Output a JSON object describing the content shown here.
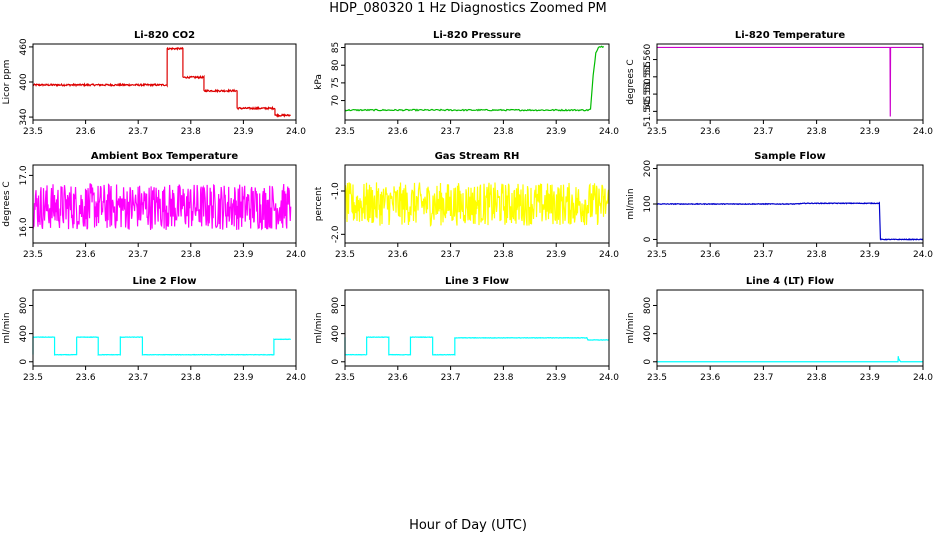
{
  "figure": {
    "title": "HDP_080320  1 Hz Diagnostics Zoomed PM",
    "xlabel": "Hour of Day (UTC)"
  },
  "chart_data": [
    {
      "type": "line",
      "title": "Li-820 CO2",
      "xlabel": "",
      "ylabel": "Licor ppm",
      "xlim": [
        23.5,
        24.0
      ],
      "ylim": [
        335,
        465
      ],
      "xticks": [
        23.5,
        23.6,
        23.7,
        23.8,
        23.9,
        24.0
      ],
      "xtick_labels": [
        "23.5",
        "23.6",
        "23.7",
        "23.8",
        "23.9",
        "24.0"
      ],
      "yticks": [
        340,
        400,
        460
      ],
      "ytick_labels": [
        "340",
        "400",
        "460"
      ],
      "color": "#dd0000",
      "series": [
        {
          "name": "CO2",
          "x": [
            23.5,
            23.755,
            23.755,
            23.7551,
            23.785,
            23.785,
            23.7851,
            23.825,
            23.825,
            23.8251,
            23.888,
            23.888,
            23.8881,
            23.96,
            23.96,
            23.9601,
            23.99
          ],
          "y": [
            395,
            395,
            395,
            457,
            457,
            408,
            408,
            408,
            385,
            385,
            385,
            355,
            355,
            355,
            343,
            343,
            343
          ]
        }
      ],
      "noise": 1.5
    },
    {
      "type": "line",
      "title": "Li-820 Pressure",
      "xlabel": "",
      "ylabel": "kPa",
      "xlim": [
        23.5,
        24.0
      ],
      "ylim": [
        64.5,
        86
      ],
      "xticks": [
        23.5,
        23.6,
        23.7,
        23.8,
        23.9,
        24.0
      ],
      "xtick_labels": [
        "23.5",
        "23.6",
        "23.7",
        "23.8",
        "23.9",
        "24.0"
      ],
      "yticks": [
        70,
        75,
        80,
        85
      ],
      "ytick_labels": [
        "70",
        "75",
        "80",
        "85"
      ],
      "color": "#00bb00",
      "series": [
        {
          "name": "Pressure",
          "x": [
            23.5,
            23.96,
            23.965,
            23.97,
            23.975,
            23.98,
            23.99
          ],
          "y": [
            67.3,
            67.3,
            67.5,
            77.0,
            83.5,
            85.2,
            85.3
          ]
        }
      ],
      "noise": 0.2
    },
    {
      "type": "line",
      "title": "Li-820 Temperature",
      "xlabel": "",
      "ylabel": "degrees C",
      "xlim": [
        23.5,
        24.0
      ],
      "ylim": [
        51.5425,
        51.5645
      ],
      "xticks": [
        23.5,
        23.6,
        23.7,
        23.8,
        23.9,
        24.0
      ],
      "xtick_labels": [
        "23.5",
        "23.6",
        "23.7",
        "23.8",
        "23.9",
        "24.0"
      ],
      "yticks": [
        51.545,
        51.55,
        51.555,
        51.56
      ],
      "ytick_labels": [
        "51.545",
        "51.550",
        "51.555",
        "51.560"
      ],
      "color": "#cc00cc",
      "series": [
        {
          "name": "Temperature",
          "x": [
            23.5,
            23.938,
            23.9385,
            23.939,
            24.0
          ],
          "y": [
            51.5635,
            51.5635,
            51.5435,
            51.5635,
            51.5635
          ]
        }
      ],
      "noise": 0
    },
    {
      "type": "line",
      "title": "Ambient Box Temperature",
      "xlabel": "",
      "ylabel": "degrees C",
      "xlim": [
        23.5,
        24.0
      ],
      "ylim": [
        15.7,
        17.2
      ],
      "xticks": [
        23.5,
        23.6,
        23.7,
        23.8,
        23.9,
        24.0
      ],
      "xtick_labels": [
        "23.5",
        "23.6",
        "23.7",
        "23.8",
        "23.9",
        "24.0"
      ],
      "yticks": [
        16.0,
        17.0
      ],
      "ytick_labels": [
        "16.0",
        "17.0"
      ],
      "color": "#ff00ff",
      "series": [
        {
          "name": "Ambient Box Temperature",
          "x": [
            23.5,
            23.99
          ],
          "y": [
            16.4,
            16.4
          ]
        }
      ],
      "noise": 0.45
    },
    {
      "type": "line",
      "title": "Gas Stream RH",
      "xlabel": "",
      "ylabel": "percent",
      "xlim": [
        23.5,
        24.0
      ],
      "ylim": [
        -2.2,
        -0.4
      ],
      "xticks": [
        23.5,
        23.6,
        23.7,
        23.8,
        23.9,
        24.0
      ],
      "xtick_labels": [
        "23.5",
        "23.6",
        "23.7",
        "23.8",
        "23.9",
        "24.0"
      ],
      "yticks": [
        -2.0,
        -1.0
      ],
      "ytick_labels": [
        "-2.0",
        "-1.0"
      ],
      "color": "#ffff00",
      "series": [
        {
          "name": "Gas Stream RH",
          "x": [
            23.5,
            24.0
          ],
          "y": [
            -1.3,
            -1.3
          ]
        }
      ],
      "noise": 0.5
    },
    {
      "type": "line",
      "title": "Sample Flow",
      "xlabel": "",
      "ylabel": "ml/min",
      "xlim": [
        23.5,
        24.0
      ],
      "ylim": [
        -10,
        210
      ],
      "xticks": [
        23.5,
        23.6,
        23.7,
        23.8,
        23.9,
        24.0
      ],
      "xtick_labels": [
        "23.5",
        "23.6",
        "23.7",
        "23.8",
        "23.9",
        "24.0"
      ],
      "yticks": [
        0,
        100,
        200
      ],
      "ytick_labels": [
        "0",
        "100",
        "200"
      ],
      "color": "#0000cc",
      "series": [
        {
          "name": "Sample Flow",
          "x": [
            23.5,
            23.76,
            23.78,
            23.918,
            23.92,
            24.0
          ],
          "y": [
            100,
            100,
            102,
            102,
            0,
            0
          ]
        }
      ],
      "noise": 1
    },
    {
      "type": "line",
      "title": "Line 2 Flow",
      "xlabel": "",
      "ylabel": "ml/min",
      "xlim": [
        23.5,
        24.0
      ],
      "ylim": [
        -60,
        1020
      ],
      "xticks": [
        23.5,
        23.6,
        23.7,
        23.8,
        23.9,
        24.0
      ],
      "xtick_labels": [
        "23.5",
        "23.6",
        "23.7",
        "23.8",
        "23.9",
        "24.0"
      ],
      "yticks": [
        0,
        400,
        800
      ],
      "ytick_labels": [
        "0",
        "400",
        "800"
      ],
      "color": "#00ffff",
      "series": [
        {
          "name": "Line 2 Flow",
          "x": [
            23.5,
            23.5,
            23.541,
            23.541,
            23.583,
            23.583,
            23.624,
            23.624,
            23.666,
            23.666,
            23.708,
            23.708,
            23.958,
            23.958,
            23.99
          ],
          "y": [
            100,
            350,
            350,
            100,
            100,
            350,
            350,
            100,
            100,
            350,
            350,
            100,
            100,
            320,
            320
          ]
        }
      ],
      "noise": 3
    },
    {
      "type": "line",
      "title": "Line 3 Flow",
      "xlabel": "",
      "ylabel": "ml/min",
      "xlim": [
        23.5,
        24.0
      ],
      "ylim": [
        -60,
        1020
      ],
      "xticks": [
        23.5,
        23.6,
        23.7,
        23.8,
        23.9,
        24.0
      ],
      "xtick_labels": [
        "23.5",
        "23.6",
        "23.7",
        "23.8",
        "23.9",
        "24.0"
      ],
      "yticks": [
        0,
        400,
        800
      ],
      "ytick_labels": [
        "0",
        "400",
        "800"
      ],
      "color": "#00ffff",
      "series": [
        {
          "name": "Line 3 Flow",
          "x": [
            23.5,
            23.5,
            23.541,
            23.541,
            23.583,
            23.583,
            23.624,
            23.624,
            23.666,
            23.666,
            23.708,
            23.708,
            23.958,
            23.96,
            24.0
          ],
          "y": [
            350,
            100,
            100,
            350,
            350,
            100,
            100,
            350,
            350,
            100,
            100,
            340,
            340,
            310,
            310
          ]
        }
      ],
      "noise": 3
    },
    {
      "type": "line",
      "title": "Line 4 (LT) Flow",
      "xlabel": "",
      "ylabel": "ml/min",
      "xlim": [
        23.5,
        24.0
      ],
      "ylim": [
        -60,
        1020
      ],
      "xticks": [
        23.5,
        23.6,
        23.7,
        23.8,
        23.9,
        24.0
      ],
      "xtick_labels": [
        "23.5",
        "23.6",
        "23.7",
        "23.8",
        "23.9",
        "24.0"
      ],
      "yticks": [
        0,
        400,
        800
      ],
      "ytick_labels": [
        "0",
        "400",
        "800"
      ],
      "color": "#00ffff",
      "series": [
        {
          "name": "Line 4 (LT) Flow",
          "x": [
            23.5,
            23.953,
            23.9535,
            23.954,
            23.956,
            23.958,
            24.0
          ],
          "y": [
            0,
            0,
            80,
            50,
            20,
            0,
            0
          ]
        }
      ],
      "noise": 0
    }
  ]
}
